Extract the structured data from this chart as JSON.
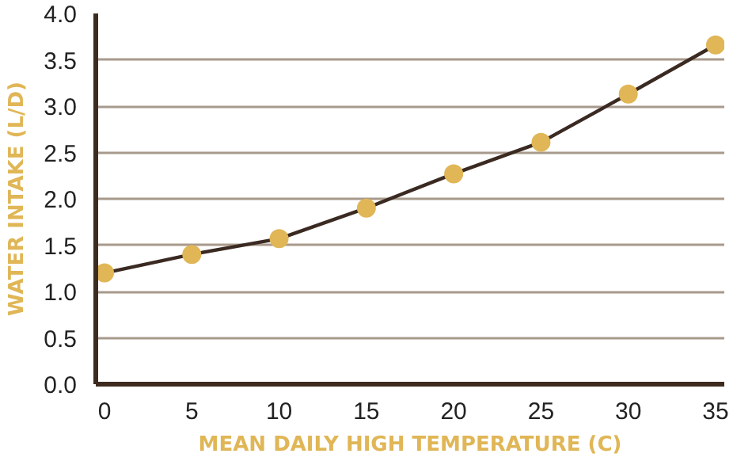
{
  "chart_data": {
    "type": "line",
    "xlabel": "MEAN DAILY HIGH TEMPERATURE (C)",
    "ylabel": "WATER INTAKE (L/D)",
    "x": [
      0,
      5,
      10,
      15,
      20,
      25,
      30,
      35
    ],
    "series": [
      {
        "color": "#3a2a22",
        "values": [
          1.2,
          1.4,
          1.57,
          1.9,
          2.27,
          2.61,
          3.13,
          3.66
        ]
      }
    ],
    "marker": "circle",
    "xlim": [
      -0.5,
      35.5
    ],
    "ylim": [
      0,
      4.0
    ],
    "xticks": [
      0,
      5,
      10,
      15,
      20,
      25,
      30,
      35
    ],
    "yticks": [
      {
        "value": 0,
        "label": "0.0"
      },
      {
        "value": 0.5,
        "label": "0.5"
      },
      {
        "value": 1,
        "label": "1.0"
      },
      {
        "value": 1.5,
        "label": "1.5"
      },
      {
        "value": 2,
        "label": "2.0"
      },
      {
        "value": 2.5,
        "label": "2.5"
      },
      {
        "value": 3,
        "label": "3.0"
      },
      {
        "value": 3.5,
        "label": "3.5"
      },
      {
        "value": 4,
        "label": "4.0"
      }
    ],
    "grid": "y"
  }
}
